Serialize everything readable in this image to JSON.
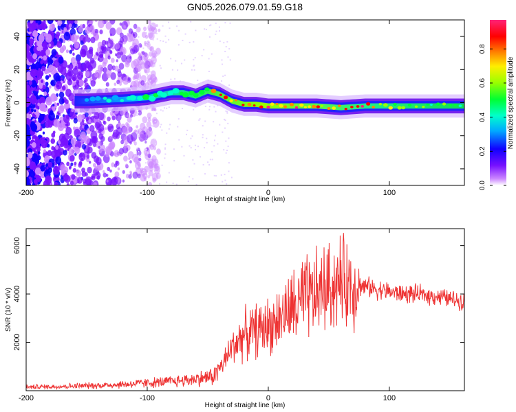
{
  "figure": {
    "title": "GN05.2026.079.01.59.G18"
  },
  "chart_data": [
    {
      "type": "heatmap",
      "title": "GN05.2026.079.01.59.G18",
      "xlabel": "Height of straight line (km)",
      "ylabel": "Frequency (Hz)",
      "xlim": [
        -200,
        162
      ],
      "ylim": [
        -50,
        50
      ],
      "x_ticks": [
        -200,
        -100,
        0,
        100
      ],
      "y_ticks": [
        -40,
        -20,
        0,
        20,
        40
      ],
      "colorbar": {
        "label": "Normalized spectral amplitude",
        "range": [
          0,
          0.97
        ],
        "ticks": [
          0.0,
          0.2,
          0.4,
          0.6,
          0.8
        ]
      },
      "ridge_frequency": {
        "x": [
          -150,
          -120,
          -100,
          -80,
          -70,
          -60,
          -50,
          -45,
          -40,
          -30,
          -20,
          -10,
          0,
          20,
          40,
          60,
          80,
          100,
          120,
          140,
          162
        ],
        "y": [
          1,
          2,
          3,
          6,
          6,
          4,
          7,
          6,
          5,
          1,
          -1,
          -1,
          -2,
          -2,
          -2,
          -3,
          -2,
          -2,
          -2,
          -2,
          -2
        ]
      },
      "ridge_amplitude": {
        "x": [
          -150,
          -120,
          -100,
          -80,
          -70,
          -60,
          -50,
          -45,
          -40,
          -30,
          -20,
          -10,
          0,
          20,
          40,
          60,
          80,
          100,
          120,
          140,
          162
        ],
        "y": [
          0.35,
          0.38,
          0.4,
          0.45,
          0.5,
          0.55,
          0.6,
          0.8,
          0.85,
          0.9,
          0.95,
          0.9,
          0.88,
          0.85,
          0.8,
          0.85,
          0.9,
          0.6,
          0.55,
          0.5,
          0.5
        ]
      }
    },
    {
      "type": "line",
      "xlabel": "Height of straight line (km)",
      "ylabel": "SNR (10 * v/v)",
      "xlim": [
        -200,
        162
      ],
      "ylim": [
        0,
        6700
      ],
      "x_ticks": [
        -200,
        -100,
        0,
        100
      ],
      "y_ticks": [
        2000,
        4000,
        6000
      ],
      "series": [
        {
          "name": "SNR",
          "color": "#ee3333",
          "x": [
            -200,
            -180,
            -160,
            -140,
            -120,
            -100,
            -80,
            -60,
            -45,
            -35,
            -30,
            -25,
            -20,
            -15,
            -10,
            -5,
            0,
            10,
            20,
            30,
            40,
            50,
            55,
            60,
            65,
            70,
            80,
            90,
            100,
            110,
            120,
            130,
            140,
            150,
            162
          ],
          "y": [
            150,
            170,
            190,
            220,
            260,
            320,
            380,
            480,
            600,
            1300,
            1800,
            2100,
            2300,
            2400,
            2500,
            2600,
            2700,
            3000,
            3400,
            3700,
            4000,
            4300,
            4400,
            4500,
            4500,
            4400,
            4300,
            4200,
            4100,
            4000,
            4000,
            3950,
            3900,
            3800,
            3700
          ]
        }
      ]
    }
  ]
}
